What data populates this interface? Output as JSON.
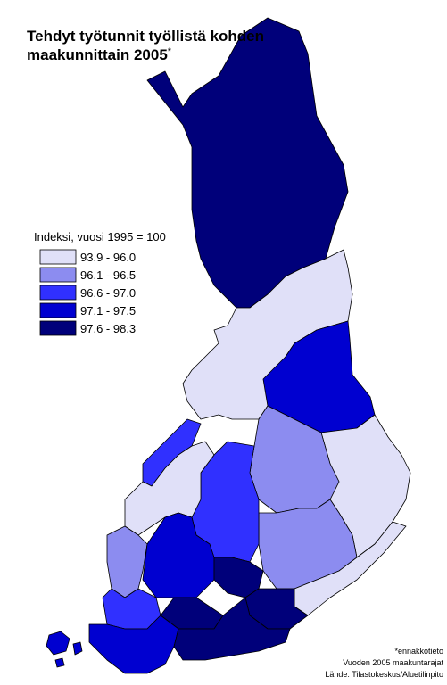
{
  "title": {
    "lines": [
      "Tehdyt työtunnit työllistä kohden",
      "maakunnittain 2005"
    ],
    "mark": "*"
  },
  "legend": {
    "title": "Indeksi, vuosi 1995 = 100",
    "classes": [
      {
        "label": "93.9 - 96.0",
        "color": "#e0e0f8"
      },
      {
        "label": "96.1 - 96.5",
        "color": "#8c8cf0"
      },
      {
        "label": "96.6 - 97.0",
        "color": "#3030ff"
      },
      {
        "label": "97.1 - 97.5",
        "color": "#0000d0"
      },
      {
        "label": "97.6 - 98.3",
        "color": "#00007a"
      }
    ]
  },
  "notes": [
    "*ennakkotieto",
    "Vuoden 2005 maakuntarajat",
    "Lähde: Tilastokeskus/Aluetilinpito"
  ]
}
